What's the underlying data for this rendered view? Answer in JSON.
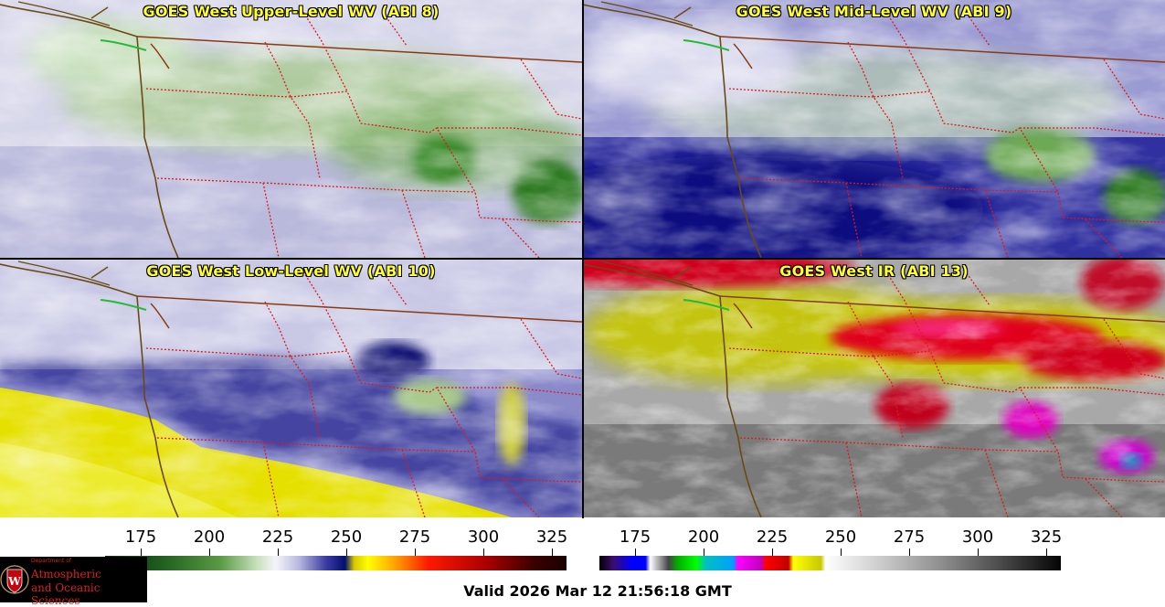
{
  "panels": [
    {
      "title": "GOES West Upper-Level WV (ABI 8)"
    },
    {
      "title": "GOES West Mid-Level WV (ABI 9)"
    },
    {
      "title": "GOES West Low-Level WV (ABI 10)"
    },
    {
      "title": "GOES West IR (ABI 13)"
    }
  ],
  "colorbars": [
    {
      "ticks": [
        "175",
        "200",
        "225",
        "250",
        "275",
        "300",
        "325"
      ],
      "palette": "water-vapor"
    },
    {
      "ticks": [
        "175",
        "200",
        "225",
        "250",
        "275",
        "300",
        "325"
      ],
      "palette": "infrared"
    }
  ],
  "valid_time": "Valid 2026 Mar 12 21:56:18 GMT",
  "logo": {
    "line1": "Department of",
    "line2": "Atmospheric",
    "line3": "and Oceanic Sciences",
    "icon": "uw-crest-icon"
  },
  "colors": {
    "title_text": "#ffff33",
    "state_border": "#dd1a1a",
    "coastline": "#6b4a12",
    "intl_border": "#8b3a10"
  }
}
